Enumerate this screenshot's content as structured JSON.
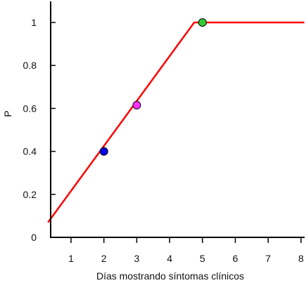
{
  "chart_data": {
    "type": "line",
    "title": "",
    "xlabel": "Días mostrando síntomas clínicos",
    "ylabel": "P",
    "xlim": [
      0.3,
      8.1
    ],
    "ylim": [
      0,
      1.1
    ],
    "xticks": [
      1,
      2,
      3,
      4,
      5,
      6,
      7,
      8
    ],
    "yticks": [
      0,
      0.2,
      0.4,
      0.6,
      0.8,
      1
    ],
    "ytick_labels": [
      "0",
      "0.2",
      "0.4",
      "0.6",
      "0.8",
      "1"
    ],
    "grid": false,
    "series": [
      {
        "color": "#ff0000",
        "points": [
          [
            0.3,
            0.07
          ],
          [
            4.75,
            1.0
          ],
          [
            8.1,
            1.0
          ]
        ]
      }
    ],
    "markers": [
      {
        "x": 2,
        "y": 0.4,
        "color": "#0000ee"
      },
      {
        "x": 3,
        "y": 0.615,
        "color": "#ff33ff"
      },
      {
        "x": 5,
        "y": 1.0,
        "color": "#33cc33"
      }
    ]
  }
}
